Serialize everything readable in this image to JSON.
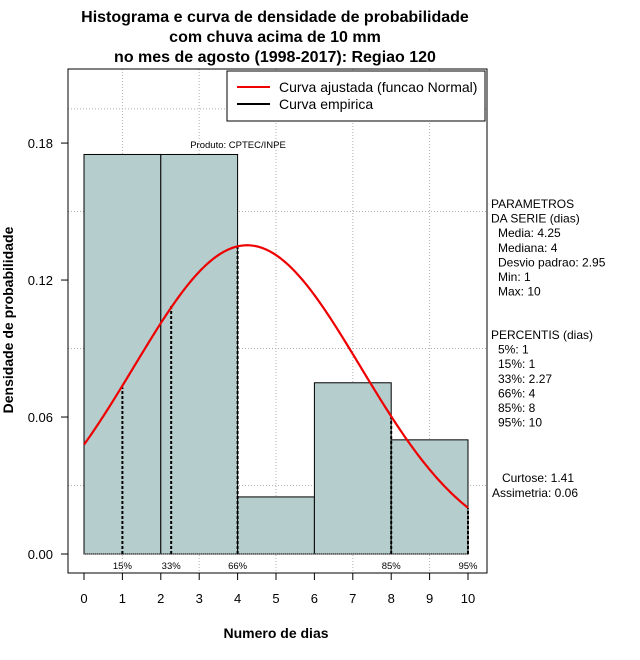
{
  "chart_data": {
    "type": "bar",
    "title_lines": [
      "Histograma e curva de densidade de probabilidade",
      "com chuva acima de 10 mm",
      "no mes de agosto (1998-2017): Regiao 120"
    ],
    "xlabel": "Numero de dias",
    "ylabel": "Densidade de probabilidade",
    "product_label": "Produto: CPTEC/INPE",
    "x_tick_labels": [
      "0",
      "1",
      "2",
      "3",
      "4",
      "5",
      "6",
      "7",
      "8",
      "9",
      "10"
    ],
    "y_ticks": [
      0.0,
      0.06,
      0.12,
      0.18
    ],
    "y_tick_labels": [
      "0.00",
      "0.06",
      "0.12",
      "0.18"
    ],
    "ylim": [
      0,
      0.208
    ],
    "grid": true,
    "bar_color": "#b5cdcd",
    "curve_color": "#ee0000",
    "bins": [
      {
        "x0": 0,
        "x1": 2,
        "density": 0.175
      },
      {
        "x0": 2,
        "x1": 4,
        "density": 0.175
      },
      {
        "x0": 4,
        "x1": 6,
        "density": 0.025
      },
      {
        "x0": 6,
        "x1": 8,
        "density": 0.075
      },
      {
        "x0": 8,
        "x1": 10,
        "density": 0.05
      }
    ],
    "normal_curve": {
      "mean": 4.25,
      "sd": 2.95,
      "x_from": 0,
      "x_to": 10
    },
    "percentile_lines": [
      {
        "label": "15%",
        "x": 1,
        "y": 0.073
      },
      {
        "label": "33%",
        "x": 2.27,
        "y": 0.109
      },
      {
        "label": "66%",
        "x": 4,
        "y": 0.135
      },
      {
        "label": "85%",
        "x": 8,
        "y": 0.06
      },
      {
        "label": "95%",
        "x": 10,
        "y": 0.02
      }
    ],
    "legend": {
      "placement": "top-right",
      "entries": [
        {
          "label": "Curva ajustada (funcao Normal)",
          "color": "#ee0000"
        },
        {
          "label": "Curva empirica",
          "color": "#000000"
        }
      ]
    },
    "parameters": {
      "header": [
        "PARAMETROS",
        "DA SERIE (dias)"
      ],
      "items": [
        "Media: 4.25",
        "Mediana: 4",
        "Desvio padrao: 2.95",
        "Min: 1",
        "Max: 10"
      ]
    },
    "percentiles": {
      "header": "PERCENTIS (dias)",
      "items": [
        "5%: 1",
        "15%: 1",
        "33%: 2.27",
        "66%: 4",
        "85%: 8",
        "95%: 10"
      ]
    },
    "shape_stats": [
      "Curtose: 1.41",
      "Assimetria: 0.06"
    ]
  }
}
